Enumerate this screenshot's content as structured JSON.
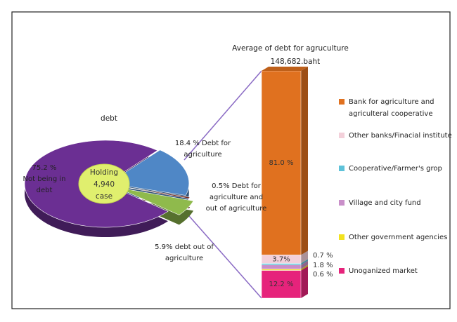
{
  "chart_data": [
    {
      "type": "pie",
      "title": "debt",
      "center_label": [
        "Holding",
        "4,940",
        "case"
      ],
      "categories": [
        "Not being in debt",
        "Debt for agriculture",
        "Debt for agriculture and out of agriculture",
        "debt out of agriculture"
      ],
      "values": [
        75.2,
        18.4,
        0.5,
        5.9
      ],
      "value_labels": [
        "75.2 %",
        "18.4 %",
        "0.5%",
        "5.9%"
      ],
      "colors": [
        "#6b2f93",
        "#4f87c6",
        "#7a2a1e",
        "#8fba4c"
      ]
    },
    {
      "type": "stacked_bar",
      "title": "Average of debt for agruculture",
      "subtitle": "148,682.baht",
      "ylim": [
        0,
        100
      ],
      "series": [
        {
          "name": "Bank for agriculture and agriculteral cooperative",
          "color": "#e0711f",
          "values": [
            81.0
          ],
          "value_labels": [
            "81.0 %"
          ]
        },
        {
          "name": "Other banks/Finacial institute",
          "color": "#f3d0da",
          "values": [
            3.7
          ],
          "value_labels": [
            "3.7%"
          ]
        },
        {
          "name": "Cooperative/Farmer's grop",
          "color": "#5ec2d9",
          "values": [
            0.7
          ],
          "value_labels": [
            "0.7 %"
          ]
        },
        {
          "name": "Village and city fund",
          "color": "#c98fc9",
          "values": [
            1.8
          ],
          "value_labels": [
            "1.8 %"
          ]
        },
        {
          "name": "Other government agencies",
          "color": "#f2e21f",
          "values": [
            0.6
          ],
          "value_labels": [
            "0.6 %"
          ]
        },
        {
          "name": "Unoganized market",
          "color": "#e6237b",
          "values": [
            12.2
          ],
          "value_labels": [
            "12.2 %"
          ]
        }
      ]
    }
  ]
}
